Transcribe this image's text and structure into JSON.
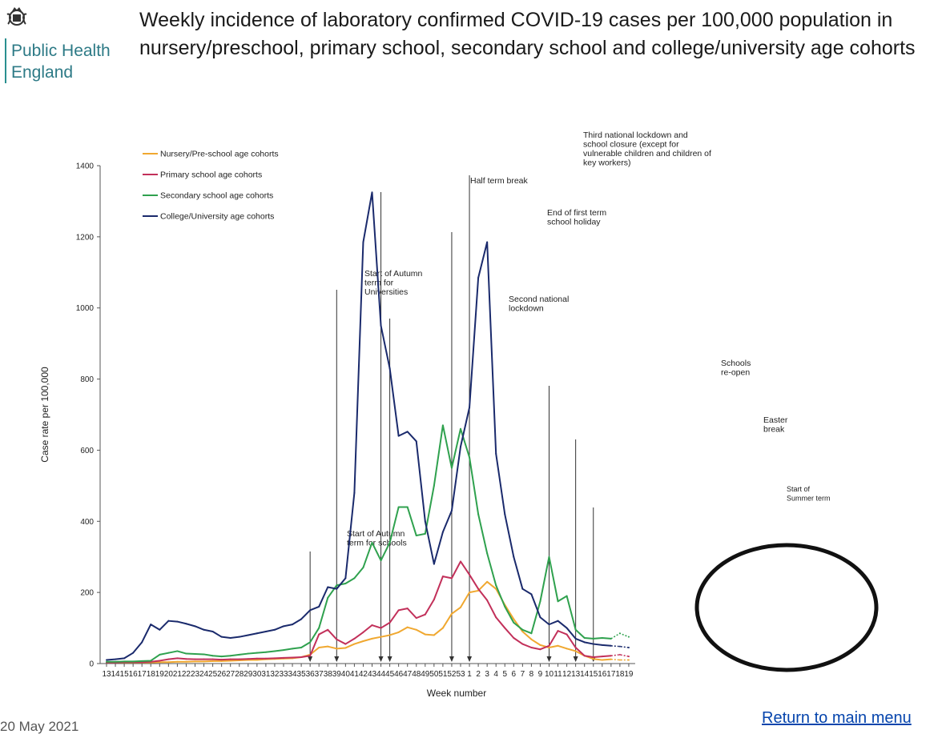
{
  "header": {
    "org_line1": "Public Health",
    "org_line2": "England",
    "title": "Weekly incidence of laboratory confirmed COVID-19 cases per 100,000 population in nursery/preschool, primary school, secondary school and college/university age cohorts"
  },
  "footer": {
    "date": "20 May 2021",
    "return_link": "Return to main menu"
  },
  "chart_data": {
    "type": "line",
    "title": "Weekly incidence of laboratory confirmed COVID-19 cases per 100,000 population in nursery/preschool, primary school, secondary school and college/university age cohorts",
    "xlabel": "Week number",
    "ylabel": "Case rate per 100,000",
    "ylim": [
      0,
      1400
    ],
    "yticks": [
      0,
      200,
      400,
      600,
      800,
      1000,
      1200,
      1400
    ],
    "grid": false,
    "legend_position": "top-left",
    "categories": [
      "13",
      "14",
      "15",
      "16",
      "17",
      "18",
      "19",
      "20",
      "21",
      "22",
      "23",
      "24",
      "25",
      "26",
      "27",
      "28",
      "29",
      "30",
      "31",
      "32",
      "33",
      "34",
      "35",
      "36",
      "37",
      "38",
      "39",
      "40",
      "41",
      "42",
      "43",
      "44",
      "45",
      "46",
      "47",
      "48",
      "49",
      "50",
      "51",
      "52",
      "53",
      "1",
      "2",
      "3",
      "4",
      "5",
      "6",
      "7",
      "8",
      "9",
      "10",
      "11",
      "12",
      "13",
      "14",
      "15",
      "16",
      "17",
      "18",
      "19"
    ],
    "series": [
      {
        "name": "Nursery/Pre-school age cohorts",
        "color": "#f0a830",
        "values": [
          3,
          3,
          3,
          3,
          3,
          3,
          4,
          4,
          5,
          5,
          6,
          6,
          7,
          7,
          8,
          9,
          10,
          10,
          12,
          13,
          14,
          15,
          18,
          25,
          45,
          48,
          42,
          44,
          55,
          63,
          70,
          75,
          80,
          88,
          102,
          95,
          82,
          80,
          100,
          140,
          158,
          200,
          205,
          230,
          210,
          165,
          125,
          90,
          68,
          52,
          45,
          50,
          42,
          35,
          22,
          13,
          10,
          12,
          10,
          10
        ]
      },
      {
        "name": "Primary school age cohorts",
        "color": "#c2305a",
        "values": [
          3,
          3,
          4,
          4,
          4,
          5,
          8,
          12,
          15,
          13,
          12,
          12,
          12,
          11,
          12,
          12,
          13,
          14,
          14,
          15,
          16,
          17,
          18,
          22,
          82,
          95,
          68,
          55,
          70,
          88,
          108,
          100,
          115,
          150,
          155,
          128,
          138,
          180,
          245,
          240,
          287,
          250,
          210,
          178,
          130,
          100,
          72,
          55,
          45,
          40,
          50,
          92,
          82,
          45,
          22,
          18,
          20,
          22,
          25,
          20
        ]
      },
      {
        "name": "Secondary school age cohorts",
        "color": "#2fa14e",
        "values": [
          5,
          5,
          6,
          6,
          7,
          8,
          25,
          30,
          35,
          28,
          27,
          26,
          22,
          20,
          22,
          25,
          28,
          30,
          32,
          35,
          38,
          42,
          45,
          60,
          100,
          185,
          220,
          225,
          240,
          270,
          340,
          290,
          340,
          440,
          440,
          360,
          365,
          500,
          670,
          550,
          660,
          580,
          420,
          310,
          220,
          160,
          115,
          95,
          85,
          175,
          300,
          175,
          190,
          95,
          72,
          70,
          72,
          70,
          85,
          75
        ]
      },
      {
        "name": "College/University age cohorts",
        "color": "#1a2a6c",
        "values": [
          10,
          12,
          15,
          30,
          60,
          110,
          95,
          120,
          118,
          112,
          105,
          95,
          90,
          75,
          72,
          75,
          80,
          85,
          90,
          95,
          105,
          110,
          125,
          150,
          160,
          215,
          210,
          240,
          480,
          1185,
          1325,
          950,
          830,
          640,
          652,
          625,
          400,
          280,
          370,
          430,
          610,
          720,
          1085,
          1185,
          590,
          420,
          300,
          210,
          195,
          130,
          110,
          120,
          100,
          70,
          60,
          55,
          52,
          50,
          48,
          45
        ]
      }
    ],
    "annotations": [
      {
        "id": "autumn-schools",
        "week_index": 23,
        "lines": [
          "Start of Autumn",
          "term for schools"
        ]
      },
      {
        "id": "autumn-universities",
        "week_index": 26,
        "lines": [
          "Start of Autumn",
          "term for",
          "Universities"
        ]
      },
      {
        "id": "half-term",
        "week_index": 31,
        "lines": [
          "Half term break"
        ]
      },
      {
        "id": "second-lockdown",
        "week_index": 32,
        "lines": [
          "Second national",
          "lockdown"
        ]
      },
      {
        "id": "end-first-term",
        "week_index": 39,
        "lines": [
          "End of first term",
          "school holiday"
        ]
      },
      {
        "id": "third-lockdown",
        "week_index": 41,
        "lines": [
          "Third national lockdown and",
          "school closure (except for",
          "vulnerable children and children of",
          "key workers)"
        ]
      },
      {
        "id": "schools-reopen",
        "week_index": 50,
        "lines": [
          "Schools",
          "re-open"
        ]
      },
      {
        "id": "easter-break",
        "week_index": 53,
        "lines": [
          "Easter",
          "break"
        ]
      },
      {
        "id": "summer-term",
        "week_index": 55,
        "lines": [
          "Start of",
          "Summer term"
        ]
      }
    ]
  }
}
